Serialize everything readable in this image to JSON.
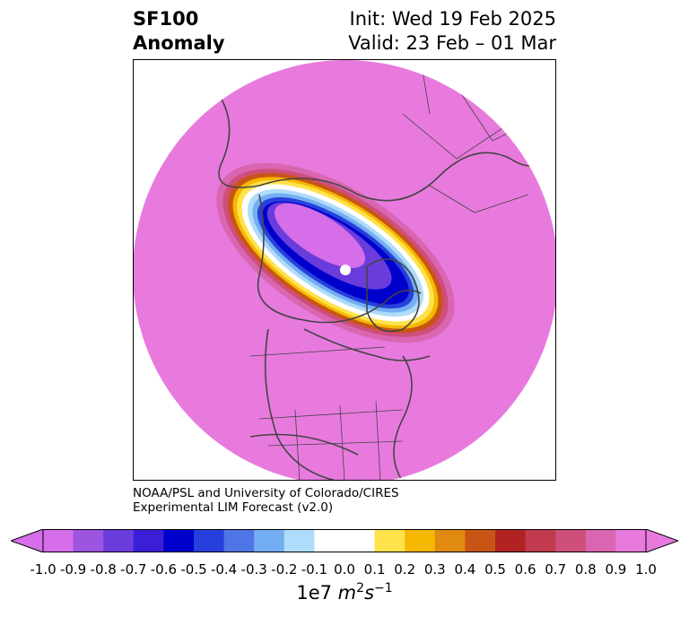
{
  "header": {
    "title_line1": "SF100",
    "title_line2": "Anomaly",
    "init": "Init: Wed 19 Feb 2025",
    "valid": "Valid: 23 Feb – 01 Mar"
  },
  "credit": {
    "line1": "NOAA/PSL and University of Colorado/CIRES",
    "line2": "Experimental LIM Forecast (v2.0)"
  },
  "colorbar": {
    "levels": [
      "-1.0",
      "-0.9",
      "-0.8",
      "-0.7",
      "-0.6",
      "-0.5",
      "-0.4",
      "-0.3",
      "-0.2",
      "-0.1",
      "0.0",
      "0.1",
      "0.2",
      "0.3",
      "0.4",
      "0.5",
      "0.6",
      "0.7",
      "0.8",
      "0.9",
      "1.0"
    ],
    "colors": [
      "#d56ee8",
      "#9c55e0",
      "#6a3cdc",
      "#3a1fd6",
      "#0000cc",
      "#2740dc",
      "#4e74e6",
      "#74aef2",
      "#aedcfa",
      "#ffffff",
      "#ffffff",
      "#ffe24a",
      "#f5b800",
      "#e08a10",
      "#c85516",
      "#b22222",
      "#c23a4e",
      "#ce4e7c",
      "#d966b0",
      "#e87ade"
    ],
    "units_prefix": "1e7 ",
    "units_base": "m",
    "units_exp": "2",
    "units_base2": "s",
    "units_exp2": "−1"
  },
  "map": {
    "background_color": "#e87ade",
    "feature": "negative anomaly centered near north pole extending toward Greenland"
  }
}
